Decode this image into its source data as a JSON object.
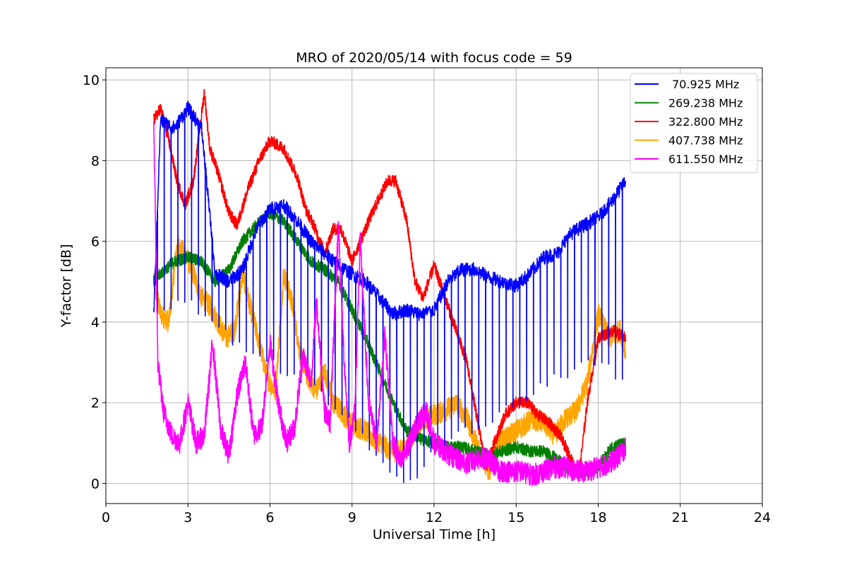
{
  "chart_data": {
    "type": "line",
    "title": "MRO of 2020/05/14 with focus code = 59",
    "xlabel": "Universal Time [h]",
    "ylabel": "Y-factor [dB]",
    "xlim": [
      0,
      24
    ],
    "ylim": [
      -0.5,
      10.3
    ],
    "xticks": [
      "0",
      "3",
      "6",
      "9",
      "12",
      "15",
      "18",
      "21",
      "24"
    ],
    "yticks": [
      "0",
      "2",
      "4",
      "6",
      "8",
      "10"
    ],
    "grid": true,
    "legend_position": "top-right",
    "series": [
      {
        "name": " 70.925 MHz",
        "color": "#0000ff",
        "upper_envelope": {
          "x": [
            1.75,
            2.0,
            2.5,
            3.0,
            3.5,
            4.0,
            4.5,
            5.0,
            5.5,
            6.0,
            6.5,
            7.0,
            7.5,
            8.0,
            8.5,
            9.0,
            9.5,
            10.0,
            10.5,
            11.0,
            11.5,
            12.0,
            12.5,
            13.0,
            13.5,
            14.0,
            14.5,
            15.0,
            15.5,
            16.0,
            16.5,
            17.0,
            17.5,
            18.0,
            18.5,
            19.0
          ],
          "y": [
            4.2,
            9.0,
            8.8,
            9.3,
            8.8,
            5.2,
            5.0,
            5.3,
            6.3,
            6.8,
            6.9,
            6.5,
            6.0,
            5.7,
            5.4,
            5.2,
            5.0,
            4.6,
            4.2,
            4.3,
            4.2,
            4.3,
            5.0,
            5.3,
            5.3,
            5.1,
            5.0,
            4.9,
            5.2,
            5.6,
            5.7,
            6.2,
            6.4,
            6.6,
            7.0,
            7.5
          ]
        },
        "dropout_floor": {
          "x": [
            1.75,
            3.0,
            4.5,
            6.0,
            7.5,
            9.0,
            10.0,
            11.0,
            11.5,
            12.0,
            13.0,
            14.0,
            15.0,
            16.0,
            17.0,
            18.0,
            19.0
          ],
          "y": [
            4.2,
            4.5,
            3.6,
            3.0,
            2.5,
            1.4,
            0.6,
            0.1,
            0.1,
            0.8,
            1.3,
            1.5,
            2.0,
            2.5,
            2.8,
            3.0,
            2.5
          ]
        },
        "dropout_spacing_h": 0.25
      },
      {
        "name": "269.238 MHz",
        "color": "#008000",
        "x": [
          1.75,
          2.0,
          2.5,
          3.0,
          3.5,
          4.0,
          4.5,
          5.0,
          5.5,
          6.0,
          6.5,
          7.0,
          7.5,
          8.0,
          8.5,
          9.0,
          9.5,
          10.0,
          10.5,
          11.0,
          11.5,
          12.0,
          12.5,
          13.0,
          13.5,
          14.0,
          14.5,
          15.0,
          15.5,
          16.0,
          16.5,
          17.0,
          17.5,
          18.0,
          18.5,
          19.0
        ],
        "y": [
          5.0,
          5.2,
          5.5,
          5.6,
          5.5,
          5.0,
          5.3,
          6.0,
          6.4,
          6.7,
          6.5,
          6.0,
          5.5,
          5.3,
          5.0,
          4.3,
          3.6,
          2.8,
          2.0,
          1.3,
          1.1,
          1.0,
          0.9,
          0.9,
          0.8,
          0.7,
          0.8,
          0.9,
          0.8,
          0.8,
          0.6,
          0.3,
          0.3,
          0.4,
          0.9,
          1.0
        ]
      },
      {
        "name": "322.800 MHz",
        "color": "#ff0000",
        "x": [
          1.75,
          2.0,
          2.3,
          2.6,
          2.9,
          3.2,
          3.6,
          3.8,
          4.1,
          4.5,
          4.8,
          5.2,
          5.6,
          6.0,
          6.5,
          7.0,
          7.3,
          7.6,
          8.0,
          8.3,
          8.6,
          9.0,
          9.3,
          9.8,
          10.3,
          10.6,
          11.0,
          11.3,
          11.6,
          12.0,
          12.4,
          12.8,
          13.2,
          13.6,
          13.9,
          14.2,
          14.6,
          15.0,
          15.4,
          15.8,
          16.2,
          16.6,
          17.0,
          17.3,
          17.6,
          18.0,
          18.5,
          19.0
        ],
        "y": [
          9.0,
          9.3,
          8.5,
          7.5,
          6.9,
          7.5,
          9.7,
          8.3,
          7.7,
          6.7,
          6.4,
          7.3,
          8.0,
          8.5,
          8.3,
          7.6,
          6.8,
          6.4,
          5.7,
          6.3,
          6.3,
          5.5,
          6.0,
          6.8,
          7.5,
          7.5,
          6.5,
          5.0,
          4.6,
          5.4,
          4.6,
          3.8,
          3.0,
          1.5,
          0.4,
          1.0,
          1.7,
          2.0,
          2.0,
          1.7,
          1.5,
          1.2,
          0.6,
          0.2,
          2.0,
          3.6,
          3.8,
          3.6
        ]
      },
      {
        "name": "407.738 MHz",
        "color": "#ffa500",
        "x": [
          1.75,
          2.0,
          2.3,
          2.6,
          2.9,
          3.2,
          3.5,
          3.8,
          4.1,
          4.4,
          4.7,
          5.0,
          5.3,
          5.6,
          5.9,
          6.2,
          6.5,
          6.8,
          7.1,
          7.4,
          7.7,
          8.0,
          8.3,
          8.6,
          8.9,
          9.2,
          9.5,
          9.8,
          10.1,
          10.4,
          10.7,
          11.0,
          11.3,
          11.6,
          12.0,
          12.4,
          12.8,
          13.2,
          13.6,
          14.0,
          14.4,
          14.8,
          15.2,
          15.6,
          16.0,
          16.4,
          16.8,
          17.2,
          17.6,
          18.0,
          18.4,
          18.8,
          19.0
        ],
        "y": [
          5.0,
          4.2,
          4.0,
          5.9,
          5.7,
          5.2,
          4.6,
          4.4,
          4.0,
          3.6,
          3.8,
          5.2,
          4.3,
          3.5,
          2.6,
          2.3,
          5.2,
          4.5,
          3.2,
          2.6,
          2.3,
          2.8,
          2.0,
          1.8,
          1.5,
          1.4,
          1.3,
          1.1,
          1.0,
          0.8,
          0.8,
          0.9,
          1.3,
          1.6,
          1.7,
          1.8,
          2.0,
          1.6,
          0.9,
          0.3,
          1.0,
          1.2,
          1.4,
          1.6,
          1.5,
          1.2,
          1.6,
          1.8,
          2.5,
          4.2,
          3.6,
          3.8,
          3.3
        ]
      },
      {
        "name": "611.550 MHz",
        "color": "#ff00ff",
        "x": [
          1.75,
          1.9,
          2.1,
          2.4,
          2.7,
          3.0,
          3.3,
          3.6,
          3.9,
          4.2,
          4.5,
          4.8,
          5.1,
          5.4,
          5.7,
          6.0,
          6.3,
          6.6,
          6.9,
          7.2,
          7.5,
          7.7,
          8.0,
          8.2,
          8.5,
          8.7,
          8.9,
          9.1,
          9.3,
          9.6,
          9.9,
          10.2,
          10.5,
          10.8,
          11.1,
          11.4,
          11.7,
          12.0,
          12.4,
          12.8,
          13.2,
          13.6,
          14.0,
          14.4,
          14.8,
          15.2,
          15.6,
          16.0,
          16.4,
          16.8,
          17.2,
          17.6,
          18.0,
          18.4,
          18.8,
          19.0
        ],
        "y": [
          9.0,
          3.0,
          1.8,
          1.2,
          1.0,
          2.0,
          1.0,
          1.2,
          3.5,
          1.3,
          0.7,
          2.2,
          3.0,
          1.2,
          1.4,
          3.5,
          2.0,
          1.0,
          1.4,
          3.2,
          2.5,
          4.5,
          1.8,
          1.5,
          6.4,
          3.2,
          1.0,
          1.8,
          6.0,
          2.0,
          1.0,
          3.7,
          1.0,
          0.5,
          1.0,
          1.5,
          1.8,
          1.0,
          0.8,
          0.6,
          0.5,
          0.6,
          0.6,
          0.3,
          0.3,
          0.3,
          0.2,
          0.3,
          0.4,
          0.4,
          0.3,
          0.3,
          0.4,
          0.5,
          0.7,
          0.9
        ]
      }
    ]
  }
}
